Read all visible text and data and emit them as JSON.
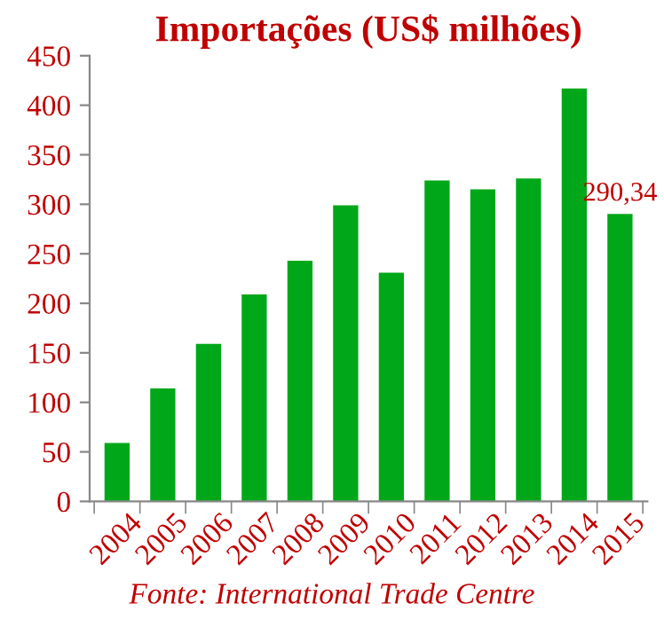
{
  "chart_data": {
    "type": "bar",
    "title": "Importações (US$ milhões)",
    "categories": [
      "2004",
      "2005",
      "2006",
      "2007",
      "2008",
      "2009",
      "2010",
      "2011",
      "2012",
      "2013",
      "2014",
      "2015"
    ],
    "values": [
      59,
      114,
      159,
      209,
      243,
      299,
      231,
      324,
      315,
      326,
      417,
      290.34
    ],
    "value_labels": [
      null,
      null,
      null,
      null,
      null,
      null,
      null,
      null,
      null,
      null,
      null,
      "290,34"
    ],
    "color": "#00a819",
    "ylim": [
      0,
      450
    ],
    "yticks": [
      0,
      50,
      100,
      150,
      200,
      250,
      300,
      350,
      400,
      450
    ],
    "grid": false,
    "legend": false,
    "annotations": [
      "Fonte: International Trade Centre"
    ]
  }
}
